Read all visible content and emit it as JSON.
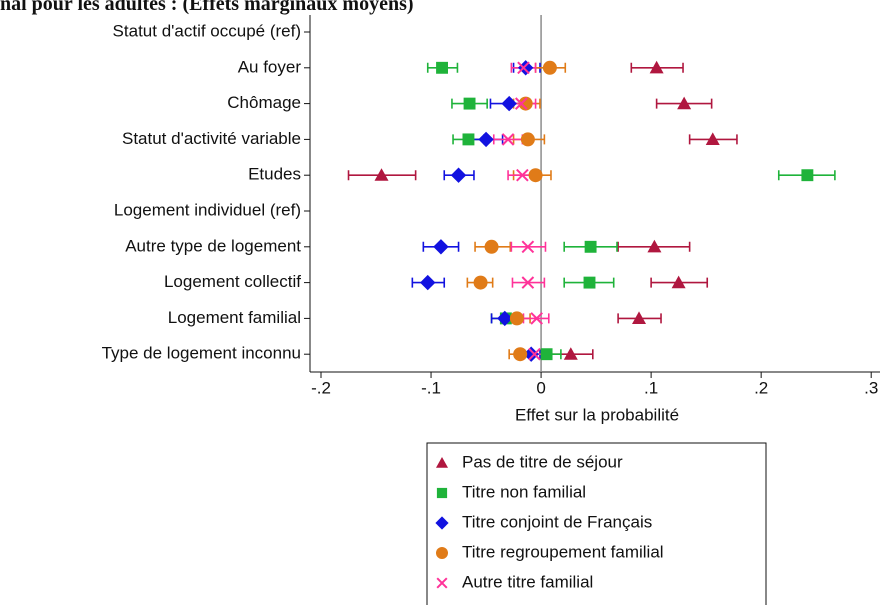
{
  "chart_data": {
    "type": "coefplot",
    "title": "nal pour les adultes : (Effets marginaux moyens)",
    "x_label": "Effet sur la probabilité",
    "categories": [
      "Statut d'actif occupé (ref)",
      "Au foyer",
      "Chômage",
      "Statut d'activité variable",
      "Etudes",
      "Logement individuel (ref)",
      "Autre type de logement",
      "Logement collectif",
      "Logement familial",
      "Type de logement inconnu"
    ],
    "xlim": [
      -0.21,
      0.308
    ],
    "xticks": [
      {
        "value": -0.2,
        "label": "-.2"
      },
      {
        "value": -0.1,
        "label": "-.1"
      },
      0,
      {
        "value": 0.1,
        "label": ".1"
      },
      {
        "value": 0.2,
        "label": ".2"
      },
      {
        "value": 0.3,
        "label": ".3"
      }
    ],
    "zero_line": true,
    "series": [
      {
        "name": "Pas de titre de séjour",
        "color": "#b0173f",
        "marker": "triangle",
        "values": [
          null,
          0.105,
          0.13,
          0.156,
          -0.145,
          null,
          0.103,
          0.125,
          0.089,
          0.027
        ],
        "ci_low": [
          null,
          0.082,
          0.105,
          0.135,
          -0.175,
          null,
          0.07,
          0.1,
          0.07,
          0.008
        ],
        "ci_high": [
          null,
          0.129,
          0.155,
          0.178,
          -0.114,
          null,
          0.135,
          0.151,
          0.109,
          0.047
        ]
      },
      {
        "name": "Titre non familial",
        "color": "#1fb33a",
        "marker": "square",
        "values": [
          null,
          -0.09,
          -0.065,
          -0.066,
          0.242,
          null,
          0.045,
          0.044,
          -0.032,
          0.005
        ],
        "ci_low": [
          null,
          -0.103,
          -0.081,
          -0.08,
          0.216,
          null,
          0.021,
          0.021,
          -0.045,
          -0.008
        ],
        "ci_high": [
          null,
          -0.076,
          -0.049,
          -0.052,
          0.267,
          null,
          0.069,
          0.066,
          -0.019,
          0.018
        ]
      },
      {
        "name": "Titre conjoint de Français",
        "color": "#1212e0",
        "marker": "diamond",
        "values": [
          null,
          -0.014,
          -0.029,
          -0.05,
          -0.075,
          null,
          -0.091,
          -0.103,
          -0.033,
          -0.009
        ],
        "ci_low": [
          null,
          -0.025,
          -0.046,
          -0.065,
          -0.088,
          null,
          -0.107,
          -0.117,
          -0.045,
          -0.017
        ],
        "ci_high": [
          null,
          -0.001,
          -0.013,
          -0.035,
          -0.061,
          null,
          -0.075,
          -0.088,
          -0.021,
          -0.001
        ]
      },
      {
        "name": "Titre regroupement familial",
        "color": "#e07b18",
        "marker": "circle",
        "values": [
          null,
          0.008,
          -0.014,
          -0.012,
          -0.005,
          null,
          -0.045,
          -0.055,
          -0.022,
          -0.019
        ],
        "ci_low": [
          null,
          -0.005,
          -0.025,
          -0.025,
          -0.025,
          null,
          -0.06,
          -0.067,
          -0.033,
          -0.029
        ],
        "ci_high": [
          null,
          0.022,
          -0.001,
          0.003,
          0.009,
          null,
          -0.028,
          -0.044,
          -0.01,
          -0.008
        ]
      },
      {
        "name": "Autre titre familial",
        "color": "#ff3399",
        "marker": "x",
        "values": [
          null,
          -0.016,
          -0.018,
          -0.03,
          -0.017,
          null,
          -0.012,
          -0.012,
          -0.004,
          -0.006
        ],
        "ci_low": [
          null,
          -0.027,
          -0.031,
          -0.043,
          -0.03,
          null,
          -0.027,
          -0.026,
          -0.016,
          -0.015
        ],
        "ci_high": [
          null,
          -0.005,
          -0.005,
          -0.017,
          -0.005,
          null,
          0.004,
          0.003,
          0.007,
          0.003
        ]
      }
    ]
  }
}
